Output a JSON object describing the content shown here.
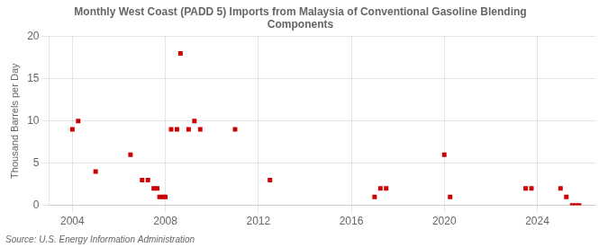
{
  "chart_data": {
    "type": "scatter",
    "title": "Monthly West Coast (PADD 5) Imports from Malaysia of Conventional Gasoline Blending\nComponents",
    "ylabel": "Thousand Barrels per Day",
    "source": "Source: U.S. Energy Information Administration",
    "color": "#cc0000",
    "marker": "square",
    "grid": true,
    "xlim": [
      2003.0,
      2026.5
    ],
    "ylim": [
      0,
      20
    ],
    "xticks": [
      2004,
      2008,
      2012,
      2016,
      2020,
      2024
    ],
    "yticks": [
      0,
      5,
      10,
      15,
      20
    ],
    "x": [
      2004.0,
      2004.25,
      2005.0,
      2006.5,
      2007.0,
      2007.25,
      2007.5,
      2007.65,
      2007.75,
      2007.9,
      2008.0,
      2008.25,
      2008.5,
      2008.65,
      2009.0,
      2009.25,
      2009.5,
      2011.0,
      2012.5,
      2017.0,
      2017.25,
      2017.5,
      2020.0,
      2020.25,
      2023.5,
      2023.75,
      2025.0,
      2025.25,
      2025.5,
      2025.65,
      2025.8
    ],
    "values": [
      9.0,
      10.0,
      4.0,
      6.0,
      3.0,
      3.0,
      2.0,
      2.0,
      1.0,
      1.0,
      1.0,
      9.0,
      9.0,
      18.0,
      9.0,
      10.0,
      9.0,
      9.0,
      3.0,
      1.0,
      2.0,
      2.0,
      6.0,
      1.0,
      2.0,
      2.0,
      2.0,
      1.0,
      0.0,
      0.0,
      0.0
    ]
  }
}
